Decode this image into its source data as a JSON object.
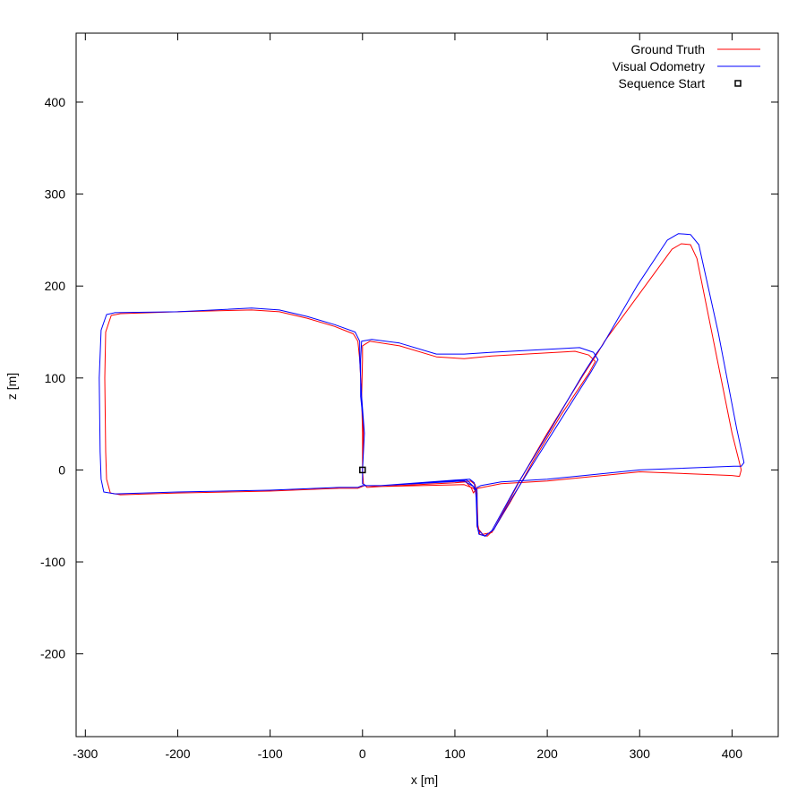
{
  "chart_data": {
    "type": "line",
    "xlabel": "x [m]",
    "ylabel": "z [m]",
    "xlim": [
      -310,
      450
    ],
    "ylim": [
      -290,
      475
    ],
    "xticks": [
      -300,
      -200,
      -100,
      0,
      100,
      200,
      300,
      400
    ],
    "yticks": [
      -200,
      -100,
      0,
      100,
      200,
      300,
      400
    ],
    "grid": false,
    "legend": "top-right",
    "series": [
      {
        "name": "Ground Truth",
        "color": "#ff0000",
        "kind": "line",
        "points": [
          [
            0,
            0
          ],
          [
            1,
            -15
          ],
          [
            5,
            -19
          ],
          [
            20,
            -18
          ],
          [
            100,
            -14
          ],
          [
            117,
            -12
          ],
          [
            122,
            -16
          ],
          [
            124,
            -30
          ],
          [
            125,
            -60
          ],
          [
            127,
            -70
          ],
          [
            135,
            -72
          ],
          [
            142,
            -65
          ],
          [
            170,
            -12
          ],
          [
            200,
            40
          ],
          [
            240,
            105
          ],
          [
            255,
            128
          ],
          [
            262,
            140
          ],
          [
            300,
            192
          ],
          [
            335,
            240
          ],
          [
            345,
            246
          ],
          [
            355,
            245
          ],
          [
            362,
            230
          ],
          [
            380,
            140
          ],
          [
            400,
            40
          ],
          [
            410,
            0
          ],
          [
            408,
            -7
          ],
          [
            400,
            -6
          ],
          [
            300,
            -2
          ],
          [
            260,
            -6
          ],
          [
            200,
            -12
          ],
          [
            150,
            -15
          ],
          [
            125,
            -20
          ],
          [
            122,
            -22
          ],
          [
            120,
            -25
          ],
          [
            118,
            -20
          ],
          [
            112,
            -13
          ],
          [
            100,
            -14
          ],
          [
            20,
            -18
          ],
          [
            5,
            -19
          ],
          [
            1,
            -15
          ],
          [
            0,
            0
          ],
          [
            1,
            40
          ],
          [
            -1,
            80
          ],
          [
            0,
            120
          ],
          [
            0,
            135
          ],
          [
            8,
            140
          ],
          [
            40,
            135
          ],
          [
            80,
            123
          ],
          [
            110,
            121
          ],
          [
            140,
            124
          ],
          [
            230,
            129
          ],
          [
            245,
            125
          ],
          [
            252,
            118
          ],
          [
            245,
            105
          ],
          [
            215,
            60
          ],
          [
            185,
            10
          ],
          [
            160,
            -35
          ],
          [
            140,
            -68
          ],
          [
            130,
            -70
          ],
          [
            124,
            -62
          ],
          [
            124,
            -45
          ],
          [
            124,
            -25
          ],
          [
            120,
            -20
          ],
          [
            110,
            -16
          ],
          [
            20,
            -18
          ],
          [
            2,
            -17
          ],
          [
            -5,
            -20
          ],
          [
            -25,
            -20
          ],
          [
            -100,
            -23
          ],
          [
            -200,
            -25
          ],
          [
            -262,
            -27
          ],
          [
            -273,
            -25
          ],
          [
            -277,
            -10
          ],
          [
            -278,
            20
          ],
          [
            -279,
            100
          ],
          [
            -278,
            150
          ],
          [
            -272,
            168
          ],
          [
            -262,
            170
          ],
          [
            -200,
            172
          ],
          [
            -120,
            174
          ],
          [
            -90,
            172
          ],
          [
            -60,
            165
          ],
          [
            -30,
            156
          ],
          [
            -10,
            148
          ],
          [
            -5,
            140
          ],
          [
            -3,
            120
          ],
          [
            -1,
            80
          ],
          [
            0,
            40
          ],
          [
            0,
            0
          ]
        ]
      },
      {
        "name": "Visual Odometry",
        "color": "#0000ff",
        "kind": "line",
        "points": [
          [
            0,
            0
          ],
          [
            0,
            -15
          ],
          [
            4,
            -17
          ],
          [
            20,
            -17
          ],
          [
            100,
            -11
          ],
          [
            116,
            -10
          ],
          [
            121,
            -14
          ],
          [
            123,
            -30
          ],
          [
            124,
            -60
          ],
          [
            126,
            -70
          ],
          [
            133,
            -72
          ],
          [
            140,
            -66
          ],
          [
            168,
            -15
          ],
          [
            200,
            38
          ],
          [
            238,
            103
          ],
          [
            252,
            125
          ],
          [
            260,
            136
          ],
          [
            297,
            200
          ],
          [
            330,
            250
          ],
          [
            342,
            257
          ],
          [
            355,
            256
          ],
          [
            364,
            245
          ],
          [
            385,
            150
          ],
          [
            405,
            45
          ],
          [
            413,
            8
          ],
          [
            410,
            4
          ],
          [
            402,
            4
          ],
          [
            300,
            0
          ],
          [
            270,
            -3
          ],
          [
            200,
            -10
          ],
          [
            150,
            -13
          ],
          [
            128,
            -17
          ],
          [
            124,
            -19
          ],
          [
            122,
            -22
          ],
          [
            120,
            -18
          ],
          [
            113,
            -11
          ],
          [
            100,
            -12
          ],
          [
            20,
            -17
          ],
          [
            4,
            -17
          ],
          [
            0,
            -15
          ],
          [
            0,
            0
          ],
          [
            2,
            40
          ],
          [
            -2,
            80
          ],
          [
            -2,
            120
          ],
          [
            -1,
            140
          ],
          [
            10,
            142
          ],
          [
            40,
            138
          ],
          [
            80,
            126
          ],
          [
            110,
            126
          ],
          [
            140,
            128
          ],
          [
            235,
            133
          ],
          [
            250,
            128
          ],
          [
            255,
            120
          ],
          [
            247,
            106
          ],
          [
            218,
            60
          ],
          [
            188,
            12
          ],
          [
            162,
            -30
          ],
          [
            142,
            -65
          ],
          [
            132,
            -72
          ],
          [
            125,
            -65
          ],
          [
            124,
            -45
          ],
          [
            124,
            -22
          ],
          [
            120,
            -18
          ],
          [
            110,
            -12
          ],
          [
            20,
            -17
          ],
          [
            0,
            -17
          ],
          [
            -5,
            -19
          ],
          [
            -25,
            -19
          ],
          [
            -100,
            -22
          ],
          [
            -200,
            -24
          ],
          [
            -268,
            -26
          ],
          [
            -280,
            -24
          ],
          [
            -283,
            -10
          ],
          [
            -284,
            20
          ],
          [
            -285,
            100
          ],
          [
            -283,
            152
          ],
          [
            -277,
            169
          ],
          [
            -268,
            171
          ],
          [
            -200,
            172
          ],
          [
            -120,
            176
          ],
          [
            -90,
            174
          ],
          [
            -60,
            167
          ],
          [
            -30,
            158
          ],
          [
            -8,
            150
          ],
          [
            -3,
            140
          ],
          [
            -3,
            120
          ],
          [
            -1,
            80
          ],
          [
            2,
            40
          ],
          [
            0,
            0
          ]
        ]
      },
      {
        "name": "Sequence Start",
        "color": "#000000",
        "kind": "marker",
        "points": [
          [
            0,
            0
          ]
        ]
      }
    ]
  }
}
